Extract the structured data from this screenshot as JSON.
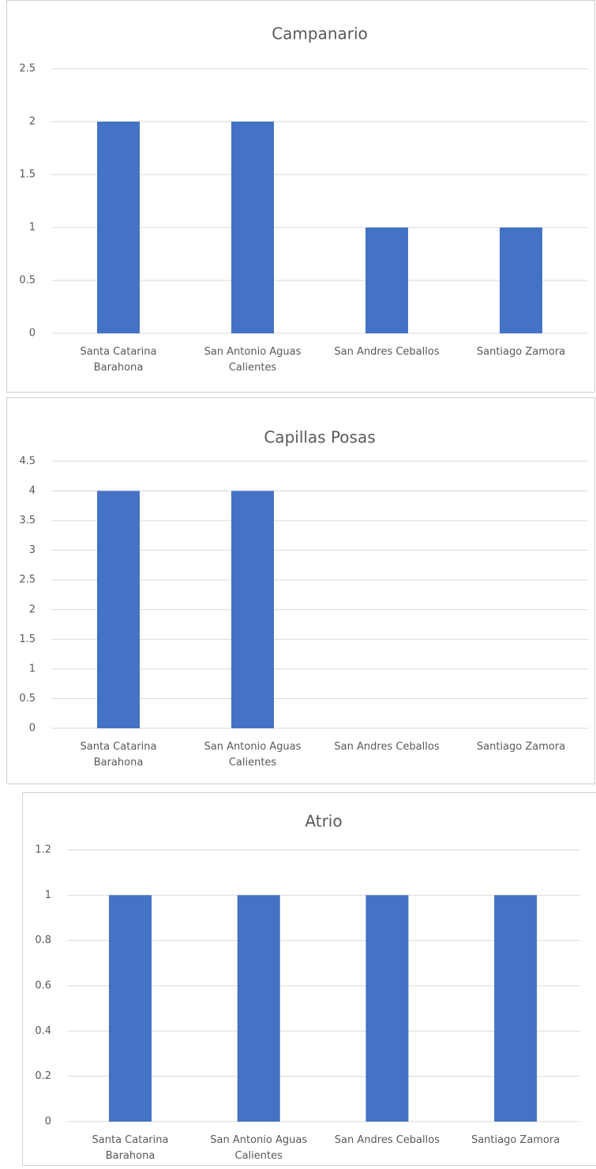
{
  "chart_data": [
    {
      "type": "bar",
      "title": "Campanario",
      "categories": [
        "Santa Catarina Barahona",
        "San Antonio Aguas Calientes",
        "San Andres Ceballos",
        "Santiago Zamora"
      ],
      "values": [
        2,
        2,
        1,
        1
      ],
      "color": "#4472c4",
      "ylim": [
        0,
        2.5
      ],
      "yticks": [
        0,
        0.5,
        1,
        1.5,
        2,
        2.5
      ],
      "grid": true
    },
    {
      "type": "bar",
      "title": "Capillas Posas",
      "categories": [
        "Santa Catarina Barahona",
        "San Antonio Aguas Calientes",
        "San Andres Ceballos",
        "Santiago Zamora"
      ],
      "values": [
        4,
        4,
        0,
        0
      ],
      "color": "#4472c4",
      "ylim": [
        0,
        4.5
      ],
      "yticks": [
        0,
        0.5,
        1,
        1.5,
        2,
        2.5,
        3,
        3.5,
        4,
        4.5
      ],
      "grid": true
    },
    {
      "type": "bar",
      "title": "Atrio",
      "categories": [
        "Santa Catarina Barahona",
        "San Antonio Aguas Calientes",
        "San Andres Ceballos",
        "Santiago Zamora"
      ],
      "values": [
        1,
        1,
        1,
        1
      ],
      "color": "#4472c4",
      "ylim": [
        0,
        1.2
      ],
      "yticks": [
        0,
        0.2,
        0.4,
        0.6,
        0.8,
        1,
        1.2
      ],
      "grid": true
    }
  ]
}
